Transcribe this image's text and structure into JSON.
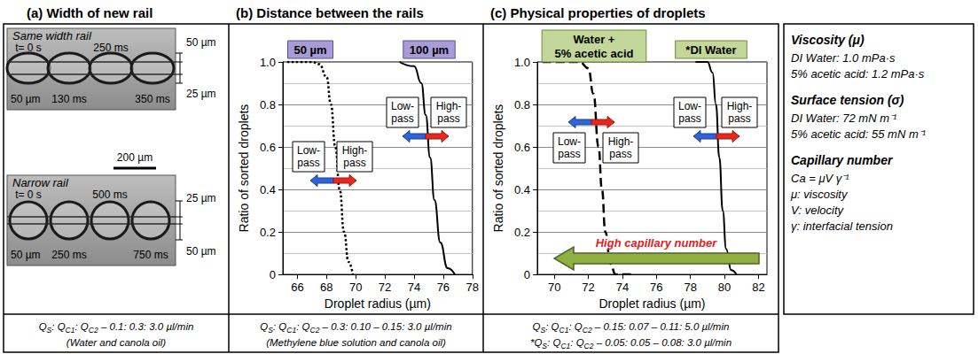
{
  "headers": [
    "(a) Width of new rail",
    "(b) Distance between the rails",
    "(c) Physical properties of droplets"
  ],
  "panel_a": {
    "images": [
      {
        "title": "Same width rail",
        "times": [
          "t= 0 s",
          "130 ms",
          "250 ms",
          "350 ms"
        ],
        "left_width": "50 µm",
        "right_widths": [
          "50 µm",
          "25 µm"
        ]
      },
      {
        "title": "Narrow rail",
        "times": [
          "t= 0 s",
          "250 ms",
          "500 ms",
          "750 ms"
        ],
        "left_width": "50 µm",
        "right_widths": [
          "25 µm",
          "50 µm"
        ]
      }
    ],
    "scale_bar": "200 µm"
  },
  "chart_data": [
    {
      "type": "line",
      "x_label": "Droplet radius (µm)",
      "y_label": "Ratio of sorted droplets",
      "xlim": [
        65,
        78
      ],
      "xticks": [
        66,
        68,
        70,
        72,
        74,
        76,
        78
      ],
      "ylim": [
        0,
        1
      ],
      "yticks": [
        0,
        0.2,
        0.4,
        0.6,
        0.8,
        {
          "value": 1,
          "label": "1.0"
        }
      ],
      "grid": true,
      "series": [
        {
          "name": "50 µm",
          "color": "#000000",
          "line_style": "dotted",
          "x": [
            65.3,
            67,
            67.5,
            68,
            68.3,
            68.6,
            68.9,
            69.2,
            69.5,
            69.8
          ],
          "values": [
            1,
            1,
            0.99,
            0.93,
            0.8,
            0.6,
            0.4,
            0.2,
            0.06,
            0
          ]
        },
        {
          "name": "100 µm",
          "color": "#000000",
          "line_style": "solid",
          "x": [
            73,
            74,
            74.5,
            74.8,
            75.1,
            75.4,
            75.8,
            76.3,
            76.8
          ],
          "values": [
            1,
            0.98,
            0.9,
            0.75,
            0.55,
            0.35,
            0.15,
            0.03,
            0
          ]
        }
      ],
      "annotations": [
        "Low-pass",
        "High-pass",
        "Low-pass",
        "High-pass"
      ]
    },
    {
      "type": "line",
      "x_label": "Droplet radius (µm)",
      "y_label": "Ratio of sorted droplets",
      "xlim": [
        69,
        82.5
      ],
      "xticks": [
        70,
        72,
        74,
        76,
        78,
        80,
        82
      ],
      "ylim": [
        0,
        1
      ],
      "yticks": [
        0,
        0.2,
        0.4,
        0.6,
        0.8,
        {
          "value": 1,
          "label": "1.0"
        }
      ],
      "grid": true,
      "series": [
        {
          "name": "Water + 5% acetic acid",
          "color": "#000000",
          "line_style": "dashed",
          "x": [
            69.3,
            71.5,
            72,
            72.3,
            72.6,
            72.8,
            73,
            73.3,
            73.6,
            74.5
          ],
          "values": [
            1,
            1,
            0.97,
            0.85,
            0.6,
            0.4,
            0.2,
            0.05,
            0,
            0
          ]
        },
        {
          "name": "*DI Water",
          "color": "#000000",
          "line_style": "solid",
          "x": [
            78.3,
            79,
            79.3,
            79.5,
            79.7,
            79.9,
            80.1,
            80.4,
            80.7
          ],
          "values": [
            1,
            1,
            0.95,
            0.8,
            0.55,
            0.3,
            0.12,
            0.02,
            0
          ]
        }
      ],
      "annotations": [
        "Low-pass",
        "High-pass",
        "Low-pass",
        "High-pass",
        "High capillary number"
      ]
    }
  ],
  "captions": [
    [
      [
        "Q",
        "S",
        ": Q",
        "C1",
        ": Q",
        "C2",
        " – 0.1: 0.3: 3.0 µl/min"
      ],
      [
        "(Water and canola oil)"
      ]
    ],
    [
      [
        "Q",
        "S",
        ": Q",
        "C1",
        ": Q",
        "C2",
        " – 0.3: 0.10 – 0.15: 3.0 µl/min"
      ],
      [
        "(Methylene blue solution and canola oil)"
      ]
    ],
    [
      [
        "Q",
        "S",
        ": Q",
        "C1",
        ": Q",
        "C2",
        " – 0.15: 0.07 – 0.11: 5.0 µl/min"
      ],
      [
        "*Q",
        "S",
        ": Q",
        "C1",
        ": Q",
        "C2",
        " – 0.05: 0.05 – 0.08: 3.0 µl/min"
      ]
    ]
  ],
  "properties": [
    {
      "heading": "Viscosity (μ)",
      "lines": [
        "DI Water: 1.0 mPa·s",
        "5% acetic acid: 1.2 mPa·s"
      ]
    },
    {
      "heading": "Surface tension (σ)",
      "lines": [
        "DI Water: 72 mN m⁻¹",
        "5% acetic acid: 55 mN m⁻¹"
      ]
    },
    {
      "heading": "Capillary number",
      "lines": [
        "Ca = μV γ⁻¹",
        "μ: viscosity",
        "V: velocity",
        "γ: interfacial tension"
      ]
    }
  ]
}
